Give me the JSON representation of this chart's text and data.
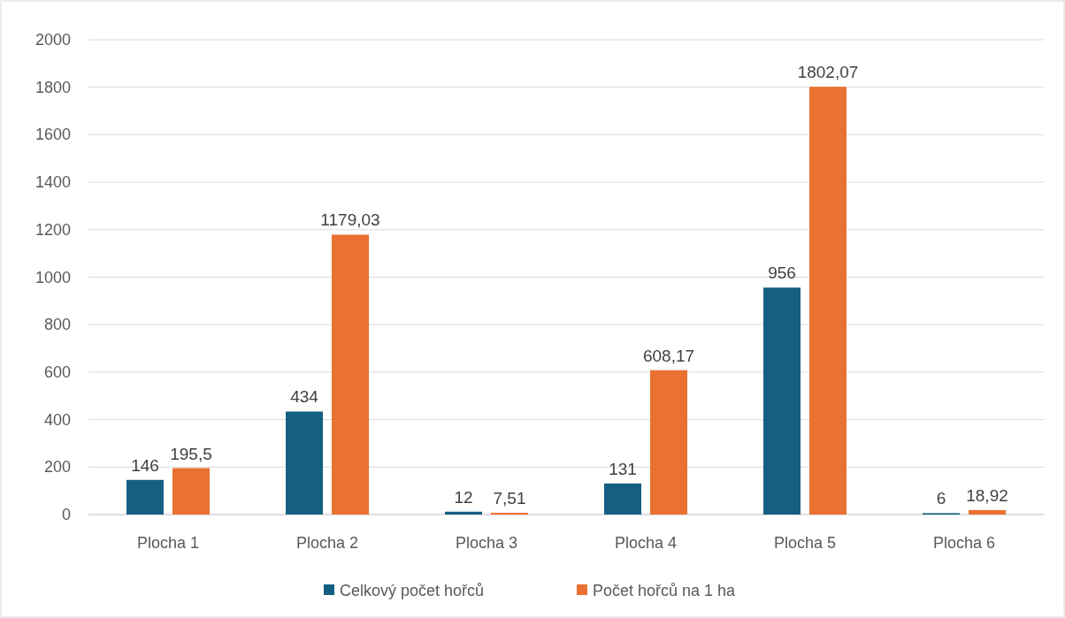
{
  "chart_data": {
    "type": "bar",
    "categories": [
      "Plocha 1",
      "Plocha 2",
      "Plocha 3",
      "Plocha 4",
      "Plocha 5",
      "Plocha 6"
    ],
    "series": [
      {
        "name": "Celkový počet hořců",
        "color": "#156082",
        "values": [
          146,
          434,
          12,
          131,
          956,
          6
        ],
        "value_labels": [
          "146",
          "434",
          "12",
          "131",
          "956",
          "6"
        ]
      },
      {
        "name": "Počet hořců na 1 ha",
        "color": "#e97132",
        "values": [
          195.5,
          1179.03,
          7.51,
          608.17,
          1802.07,
          18.92
        ],
        "value_labels": [
          "195,5",
          "1179,03",
          "7,51",
          "608,17",
          "1802,07",
          "18,92"
        ]
      }
    ],
    "ylim": [
      0,
      2000
    ],
    "yticks": [
      0,
      200,
      400,
      600,
      800,
      1000,
      1200,
      1400,
      1600,
      1800,
      2000
    ],
    "grid": "y",
    "legend": "bottom"
  }
}
